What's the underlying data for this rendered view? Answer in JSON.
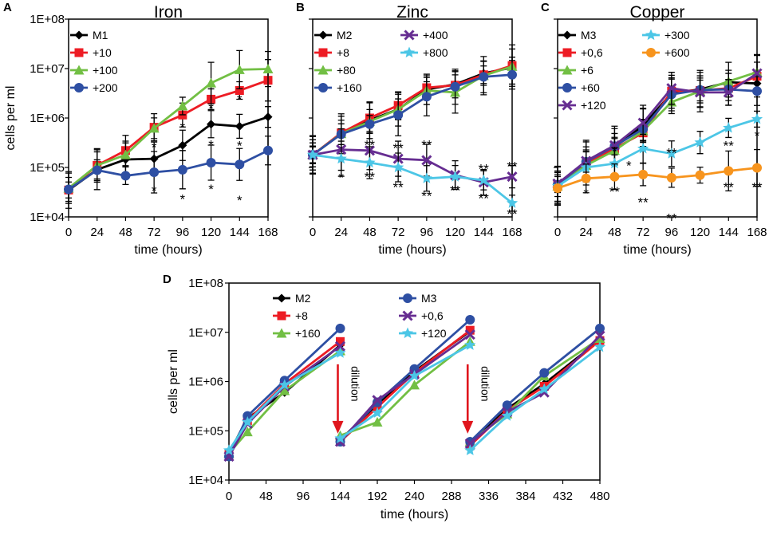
{
  "colors": {
    "black": "#000000",
    "red": "#ed1c24",
    "green": "#72bf44",
    "blue": "#2e4fa3",
    "purple": "#662d91",
    "cyan": "#4cc6e6",
    "orange": "#f7941d",
    "arrow": "#e0161d"
  },
  "chart_data": [
    {
      "id": "A",
      "panel_label": "A",
      "type": "line",
      "title": "Iron",
      "xlabel": "time (hours)",
      "ylabel": "cells per ml",
      "yscale": "log",
      "ylim_exp": [
        4,
        8
      ],
      "xlim": [
        0,
        168
      ],
      "x": [
        0,
        24,
        48,
        72,
        96,
        120,
        144,
        168
      ],
      "x_tick_labels": [
        "0",
        "24",
        "48",
        "72",
        "96",
        "120",
        "144",
        "168"
      ],
      "y_tick_labels": [
        "1E+04",
        "1E+05",
        "1E+06",
        "1E+07",
        "1E+08"
      ],
      "show_ylabel": true,
      "legend_columns": 1,
      "series": [
        {
          "name": "M1",
          "color": "black",
          "marker": "diamond",
          "values": [
            35000,
            90000,
            145000,
            150000,
            280000,
            750000,
            680000,
            1050000
          ]
        },
        {
          "name": "+10",
          "color": "red",
          "marker": "square",
          "values": [
            35000,
            110000,
            220000,
            650000,
            1150000,
            2400000,
            3600000,
            5800000
          ]
        },
        {
          "name": "+100",
          "color": "green",
          "marker": "triangle",
          "values": [
            38000,
            110000,
            180000,
            620000,
            1750000,
            5100000,
            9500000,
            9800000
          ]
        },
        {
          "name": "+200",
          "color": "blue",
          "marker": "circle",
          "values": [
            36000,
            88000,
            68000,
            80000,
            90000,
            125000,
            115000,
            220000
          ]
        }
      ],
      "annotations": [
        {
          "text": "*",
          "x": 72,
          "y": 260000
        },
        {
          "text": "*",
          "x": 96,
          "y": 650000
        },
        {
          "text": "*",
          "x": 120,
          "y": 1600000
        },
        {
          "text": "*",
          "x": 120,
          "y": 290000
        },
        {
          "text": "*",
          "x": 144,
          "y": 2400000
        },
        {
          "text": "*",
          "x": 144,
          "y": 280000
        },
        {
          "text": "*",
          "x": 72,
          "y": 34000
        },
        {
          "text": "*",
          "x": 96,
          "y": 23000
        },
        {
          "text": "*",
          "x": 120,
          "y": 37000
        },
        {
          "text": "*",
          "x": 144,
          "y": 22000
        }
      ]
    },
    {
      "id": "B",
      "panel_label": "B",
      "type": "line",
      "title": "Zinc",
      "xlabel": "time (hours)",
      "ylabel": "",
      "yscale": "log",
      "ylim_exp": [
        4,
        8
      ],
      "xlim": [
        0,
        168
      ],
      "x": [
        0,
        24,
        48,
        72,
        96,
        120,
        144,
        168
      ],
      "x_tick_labels": [
        "0",
        "24",
        "48",
        "72",
        "96",
        "120",
        "144",
        "168"
      ],
      "y_tick_labels": [
        "1E+04",
        "1E+05",
        "1E+06",
        "1E+07",
        "1E+08"
      ],
      "show_ylabel": false,
      "legend_columns": 2,
      "series": [
        {
          "name": "M2",
          "color": "black",
          "marker": "diamond",
          "values": [
            180000,
            480000,
            900000,
            1500000,
            3800000,
            4800000,
            8000000,
            10500000
          ]
        },
        {
          "name": "+8",
          "color": "red",
          "marker": "square",
          "values": [
            180000,
            500000,
            1000000,
            1800000,
            4100000,
            4600000,
            7500000,
            11500000
          ]
        },
        {
          "name": "+80",
          "color": "green",
          "marker": "triangle",
          "values": [
            180000,
            480000,
            850000,
            1500000,
            3600000,
            3300000,
            7200000,
            11000000
          ]
        },
        {
          "name": "+160",
          "color": "blue",
          "marker": "circle",
          "values": [
            180000,
            470000,
            750000,
            1150000,
            2700000,
            4300000,
            6800000,
            7500000
          ]
        },
        {
          "name": "+400",
          "color": "purple",
          "marker": "x",
          "values": [
            180000,
            230000,
            220000,
            150000,
            140000,
            70000,
            50000,
            65000
          ]
        },
        {
          "name": "+800",
          "color": "cyan",
          "marker": "star",
          "values": [
            180000,
            150000,
            125000,
            100000,
            60000,
            65000,
            55000,
            19000
          ]
        }
      ],
      "annotations": [
        {
          "text": "*",
          "x": 24,
          "y": 63000
        },
        {
          "text": "**",
          "x": 48,
          "y": 290000
        },
        {
          "text": "**",
          "x": 48,
          "y": 65000
        },
        {
          "text": "**",
          "x": 72,
          "y": 250000
        },
        {
          "text": "**",
          "x": 72,
          "y": 40000
        },
        {
          "text": "**",
          "x": 96,
          "y": 290000
        },
        {
          "text": "**",
          "x": 96,
          "y": 27000
        },
        {
          "text": "**",
          "x": 120,
          "y": 35000
        },
        {
          "text": "**",
          "x": 144,
          "y": 95000
        },
        {
          "text": "**",
          "x": 144,
          "y": 24000
        },
        {
          "text": "**",
          "x": 168,
          "y": 105000
        },
        {
          "text": "**",
          "x": 168,
          "y": 11500
        }
      ]
    },
    {
      "id": "C",
      "panel_label": "C",
      "type": "line",
      "title": "Copper",
      "xlabel": "time (hours)",
      "ylabel": "",
      "yscale": "log",
      "ylim_exp": [
        4,
        8
      ],
      "xlim": [
        0,
        168
      ],
      "x": [
        0,
        24,
        48,
        72,
        96,
        120,
        144,
        168
      ],
      "x_tick_labels": [
        "0",
        "24",
        "48",
        "72",
        "96",
        "120",
        "144",
        "168"
      ],
      "y_tick_labels": [
        "1E+04",
        "1E+05",
        "1E+06",
        "1E+07",
        "1E+08"
      ],
      "show_ylabel": false,
      "legend_columns": 2,
      "series": [
        {
          "name": "M3",
          "color": "black",
          "marker": "diamond",
          "values": [
            45000,
            130000,
            260000,
            700000,
            3200000,
            3800000,
            5300000,
            5000000
          ]
        },
        {
          "name": "+0,6",
          "color": "red",
          "marker": "square",
          "values": [
            45000,
            120000,
            240000,
            500000,
            3500000,
            3600000,
            4000000,
            7000000
          ]
        },
        {
          "name": "+6",
          "color": "green",
          "marker": "triangle",
          "values": [
            42000,
            110000,
            220000,
            550000,
            2100000,
            3500000,
            5500000,
            8500000
          ]
        },
        {
          "name": "+60",
          "color": "blue",
          "marker": "circle",
          "values": [
            45000,
            130000,
            270000,
            600000,
            3000000,
            3700000,
            3800000,
            3500000
          ]
        },
        {
          "name": "+120",
          "color": "purple",
          "marker": "x",
          "values": [
            47000,
            135000,
            280000,
            800000,
            4000000,
            3300000,
            3300000,
            8000000
          ]
        },
        {
          "name": "+300",
          "color": "cyan",
          "marker": "star",
          "values": [
            42000,
            100000,
            120000,
            240000,
            190000,
            320000,
            630000,
            950000
          ]
        },
        {
          "name": "+600",
          "color": "orange",
          "marker": "circle",
          "values": [
            38000,
            60000,
            65000,
            72000,
            62000,
            70000,
            85000,
            98000
          ]
        }
      ],
      "annotations": [
        {
          "text": "*",
          "x": 48,
          "y": 215000
        },
        {
          "text": "*",
          "x": 60,
          "y": 110000
        },
        {
          "text": "*",
          "x": 24,
          "y": 30000
        },
        {
          "text": "**",
          "x": 48,
          "y": 33000
        },
        {
          "text": "**",
          "x": 72,
          "y": 20000
        },
        {
          "text": "**",
          "x": 96,
          "y": 200000
        },
        {
          "text": "**",
          "x": 96,
          "y": 9500
        },
        {
          "text": "**",
          "x": 144,
          "y": 280000
        },
        {
          "text": "**",
          "x": 144,
          "y": 40000
        },
        {
          "text": "**",
          "x": 168,
          "y": 40000
        },
        {
          "text": "*",
          "x": 168,
          "y": 440000
        }
      ]
    },
    {
      "id": "D",
      "panel_label": "D",
      "type": "line",
      "title": "",
      "xlabel": "time (hours)",
      "ylabel": "cells per ml",
      "yscale": "log",
      "ylim_exp": [
        4,
        8
      ],
      "xlim": [
        0,
        480
      ],
      "x_tick_values": [
        0,
        48,
        96,
        144,
        192,
        240,
        288,
        336,
        384,
        432,
        480
      ],
      "x_tick_labels": [
        "0",
        "48",
        "96",
        "144",
        "192",
        "240",
        "288",
        "336",
        "384",
        "432",
        "480"
      ],
      "y_tick_labels": [
        "1E+04",
        "1E+05",
        "1E+06",
        "1E+07",
        "1E+08"
      ],
      "show_ylabel": true,
      "legend_columns": 2,
      "dilution_times": [
        144,
        312
      ],
      "series": [
        {
          "name": "M2",
          "color": "black",
          "marker": "diamond",
          "segments": [
            [
              [
                0,
                35000
              ],
              [
                24,
                180000
              ],
              [
                72,
                600000
              ],
              [
                144,
                5500000
              ]
            ],
            [
              [
                144,
                65000
              ],
              [
                192,
                350000
              ],
              [
                240,
                1600000
              ],
              [
                312,
                10500000
              ]
            ],
            [
              [
                312,
                55000
              ],
              [
                360,
                280000
              ],
              [
                408,
                900000
              ],
              [
                480,
                7000000
              ]
            ]
          ]
        },
        {
          "name": "+8",
          "color": "red",
          "marker": "square",
          "segments": [
            [
              [
                0,
                33000
              ],
              [
                24,
                160000
              ],
              [
                72,
                900000
              ],
              [
                144,
                6500000
              ]
            ],
            [
              [
                144,
                60000
              ],
              [
                192,
                300000
              ],
              [
                240,
                1500000
              ],
              [
                312,
                11000000
              ]
            ],
            [
              [
                312,
                50000
              ],
              [
                360,
                260000
              ],
              [
                408,
                800000
              ],
              [
                480,
                6800000
              ]
            ]
          ]
        },
        {
          "name": "+160",
          "color": "green",
          "marker": "triangle",
          "segments": [
            [
              [
                0,
                35000
              ],
              [
                24,
                95000
              ],
              [
                72,
                650000
              ],
              [
                144,
                4200000
              ]
            ],
            [
              [
                144,
                80000
              ],
              [
                192,
                150000
              ],
              [
                240,
                850000
              ],
              [
                312,
                6500000
              ]
            ],
            [
              [
                312,
                60000
              ],
              [
                360,
                220000
              ],
              [
                408,
                1300000
              ],
              [
                480,
                7500000
              ]
            ]
          ]
        },
        {
          "name": "M3",
          "color": "blue",
          "marker": "circle",
          "segments": [
            [
              [
                0,
                30000
              ],
              [
                24,
                200000
              ],
              [
                72,
                1050000
              ],
              [
                144,
                12000000
              ]
            ],
            [
              [
                144,
                60000
              ],
              [
                192,
                380000
              ],
              [
                240,
                1800000
              ],
              [
                312,
                18000000
              ]
            ],
            [
              [
                312,
                60000
              ],
              [
                360,
                330000
              ],
              [
                408,
                1500000
              ],
              [
                480,
                12000000
              ]
            ]
          ]
        },
        {
          "name": "+0,6",
          "color": "purple",
          "marker": "x",
          "segments": [
            [
              [
                0,
                30000
              ],
              [
                24,
                140000
              ],
              [
                72,
                800000
              ],
              [
                144,
                5200000
              ]
            ],
            [
              [
                144,
                60000
              ],
              [
                192,
                420000
              ],
              [
                240,
                1400000
              ],
              [
                312,
                9000000
              ]
            ],
            [
              [
                312,
                55000
              ],
              [
                360,
                240000
              ],
              [
                408,
                600000
              ],
              [
                480,
                8500000
              ]
            ]
          ]
        },
        {
          "name": "+120",
          "color": "cyan",
          "marker": "star",
          "segments": [
            [
              [
                0,
                40000
              ],
              [
                24,
                150000
              ],
              [
                72,
                850000
              ],
              [
                144,
                3800000
              ]
            ],
            [
              [
                144,
                70000
              ],
              [
                192,
                230000
              ],
              [
                240,
                1300000
              ],
              [
                312,
                5500000
              ]
            ],
            [
              [
                312,
                40000
              ],
              [
                360,
                200000
              ],
              [
                408,
                700000
              ],
              [
                480,
                5000000
              ]
            ]
          ]
        }
      ],
      "annotations": [
        {
          "text": "dilution",
          "type": "arrow",
          "x": 144
        },
        {
          "text": "dilution",
          "type": "arrow",
          "x": 312
        }
      ]
    }
  ]
}
